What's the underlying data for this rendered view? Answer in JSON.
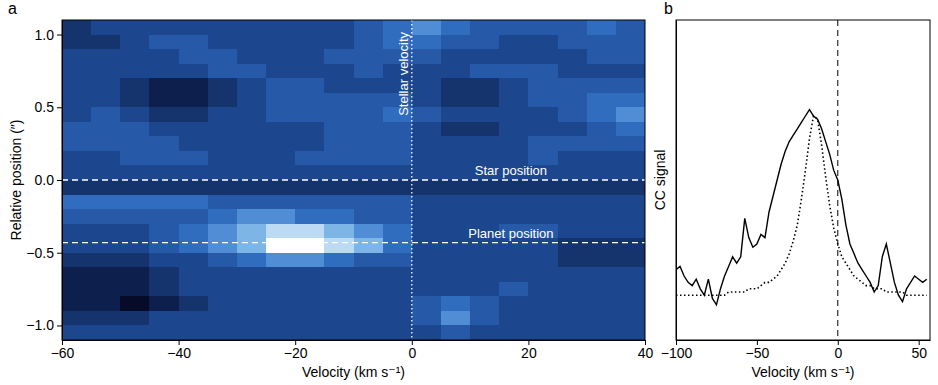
{
  "chart_data": [
    {
      "type": "heatmap",
      "panel_label": "a",
      "xlabel": "Velocity (km s⁻¹)",
      "ylabel": "Relative position (″)",
      "xlim": [
        -60,
        40
      ],
      "ylim": [
        -1.1,
        1.1
      ],
      "xticks": [
        {
          "value": -60,
          "label": "−60"
        },
        {
          "value": -40,
          "label": "−40"
        },
        {
          "value": -20,
          "label": "−20"
        },
        0,
        20,
        40
      ],
      "yticks": [
        {
          "value": -1,
          "label": "−1.0"
        },
        {
          "value": -0.5,
          "label": "−0.5"
        },
        {
          "value": 0,
          "label": "0.0"
        },
        0.5,
        {
          "value": 1,
          "label": "1.0"
        }
      ],
      "zlim": [
        0,
        9
      ],
      "x": [
        -57.5,
        -52.5,
        -47.5,
        -42.5,
        -37.5,
        -32.5,
        -27.5,
        -22.5,
        -17.5,
        -12.5,
        -7.5,
        -2.5,
        2.5,
        7.5,
        12.5,
        17.5,
        22.5,
        27.5,
        32.5,
        37.5
      ],
      "y": [
        1.05,
        0.95,
        0.85,
        0.75,
        0.65,
        0.55,
        0.45,
        0.35,
        0.25,
        0.15,
        0.05,
        -0.05,
        -0.15,
        -0.25,
        -0.35,
        -0.45,
        -0.55,
        -0.65,
        -0.75,
        -0.85,
        -0.95,
        -1.05
      ],
      "cells": [
        [
          2,
          3,
          3,
          3,
          3,
          3,
          3,
          3,
          3,
          3,
          4,
          5,
          6,
          5,
          4,
          4,
          4,
          4,
          5,
          4
        ],
        [
          2,
          2,
          3,
          4,
          4,
          3,
          3,
          3,
          3,
          3,
          4,
          5,
          5,
          4,
          4,
          3,
          3,
          4,
          4,
          4
        ],
        [
          3,
          3,
          3,
          3,
          4,
          4,
          3,
          3,
          3,
          4,
          4,
          4,
          4,
          3,
          3,
          3,
          3,
          3,
          4,
          4
        ],
        [
          3,
          3,
          3,
          3,
          3,
          4,
          4,
          3,
          3,
          3,
          4,
          3,
          3,
          3,
          4,
          4,
          4,
          3,
          3,
          3
        ],
        [
          3,
          3,
          2,
          1,
          1,
          2,
          3,
          4,
          4,
          3,
          3,
          3,
          3,
          2,
          2,
          3,
          4,
          4,
          4,
          4
        ],
        [
          3,
          3,
          2,
          1,
          1,
          2,
          3,
          4,
          4,
          4,
          4,
          4,
          3,
          2,
          2,
          3,
          4,
          4,
          5,
          5
        ],
        [
          3,
          4,
          3,
          2,
          2,
          3,
          3,
          4,
          4,
          4,
          4,
          5,
          4,
          3,
          3,
          3,
          3,
          4,
          5,
          6
        ],
        [
          4,
          4,
          4,
          3,
          3,
          3,
          3,
          3,
          3,
          4,
          4,
          4,
          3,
          2,
          2,
          3,
          3,
          3,
          4,
          5
        ],
        [
          4,
          4,
          4,
          4,
          3,
          3,
          3,
          3,
          3,
          4,
          4,
          4,
          3,
          3,
          3,
          3,
          4,
          4,
          4,
          4
        ],
        [
          3,
          3,
          4,
          4,
          4,
          3,
          3,
          3,
          4,
          4,
          4,
          4,
          3,
          3,
          3,
          3,
          4,
          3,
          3,
          3
        ],
        [
          3,
          3,
          3,
          3,
          3,
          3,
          3,
          3,
          3,
          3,
          3,
          3,
          3,
          3,
          3,
          3,
          3,
          3,
          3,
          3
        ],
        [
          2,
          2,
          2,
          2,
          2,
          2,
          2,
          2,
          2,
          2,
          2,
          2,
          2,
          2,
          2,
          2,
          2,
          2,
          2,
          2
        ],
        [
          5,
          5,
          5,
          5,
          5,
          4,
          4,
          4,
          4,
          4,
          4,
          4,
          3,
          3,
          3,
          3,
          3,
          3,
          3,
          3
        ],
        [
          4,
          4,
          4,
          4,
          4,
          5,
          6,
          6,
          5,
          5,
          4,
          4,
          3,
          3,
          3,
          3,
          3,
          3,
          3,
          3
        ],
        [
          3,
          3,
          3,
          4,
          5,
          6,
          7,
          8,
          8,
          7,
          6,
          5,
          3,
          3,
          3,
          4,
          4,
          3,
          3,
          3
        ],
        [
          3,
          3,
          3,
          4,
          5,
          6,
          7,
          9,
          9,
          8,
          7,
          5,
          3,
          3,
          3,
          3,
          3,
          2,
          2,
          2
        ],
        [
          2,
          2,
          2,
          3,
          3,
          4,
          5,
          6,
          6,
          5,
          4,
          4,
          3,
          3,
          3,
          3,
          3,
          2,
          2,
          2
        ],
        [
          1,
          1,
          1,
          2,
          3,
          3,
          3,
          3,
          3,
          3,
          3,
          3,
          3,
          3,
          3,
          3,
          3,
          3,
          3,
          3
        ],
        [
          1,
          1,
          1,
          2,
          3,
          3,
          3,
          3,
          3,
          3,
          3,
          3,
          3,
          3,
          3,
          4,
          3,
          3,
          3,
          3
        ],
        [
          1,
          1,
          0,
          1,
          2,
          3,
          3,
          3,
          3,
          3,
          3,
          3,
          4,
          5,
          4,
          3,
          3,
          3,
          3,
          3
        ],
        [
          2,
          2,
          2,
          3,
          3,
          3,
          3,
          3,
          3,
          3,
          3,
          3,
          4,
          6,
          4,
          3,
          3,
          3,
          3,
          3
        ],
        [
          3,
          3,
          3,
          3,
          3,
          3,
          3,
          3,
          3,
          3,
          3,
          3,
          3,
          4,
          3,
          3,
          3,
          3,
          3,
          3
        ]
      ],
      "annotations": [
        {
          "text": "Stellar velocity",
          "x": 0,
          "line_style": "dotted"
        },
        {
          "text": "Star position",
          "y": 0,
          "line_style": "dashed"
        },
        {
          "text": "Planet position",
          "y": -0.43,
          "line_style": "dashed"
        }
      ]
    },
    {
      "type": "line",
      "panel_label": "b",
      "xlabel": "Velocity (km s⁻¹)",
      "ylabel": "CC signal",
      "xlim": [
        -100,
        57
      ],
      "ylim": [
        0,
        1
      ],
      "xticks": [
        {
          "value": -100,
          "label": "−100"
        },
        {
          "value": -50,
          "label": "−50"
        },
        0,
        50
      ],
      "tick_labels": "x",
      "x": [
        -100,
        -97.5,
        -95,
        -92.5,
        -90,
        -87.5,
        -85,
        -82.5,
        -80,
        -77.5,
        -75,
        -72.5,
        -70,
        -67.5,
        -65,
        -62.5,
        -60,
        -57.5,
        -55,
        -52.5,
        -50,
        -47.5,
        -45,
        -42.5,
        -40,
        -37.5,
        -35,
        -32.5,
        -30,
        -27.5,
        -25,
        -22.5,
        -20,
        -17.5,
        -15,
        -12.5,
        -10,
        -7.5,
        -5,
        -2.5,
        0,
        2.5,
        5,
        7.5,
        10,
        12.5,
        15,
        17.5,
        20,
        22.5,
        25,
        27.5,
        30,
        32.5,
        35,
        37.5,
        40,
        42.5,
        45,
        47.5,
        50,
        52.5,
        55
      ],
      "series": [
        {
          "color": "#000000",
          "line_style": "solid",
          "values": [
            0.22,
            0.23,
            0.2,
            0.18,
            0.17,
            0.19,
            0.16,
            0.14,
            0.19,
            0.13,
            0.11,
            0.16,
            0.2,
            0.23,
            0.26,
            0.24,
            0.26,
            0.38,
            0.32,
            0.29,
            0.3,
            0.33,
            0.32,
            0.4,
            0.45,
            0.5,
            0.55,
            0.59,
            0.62,
            0.64,
            0.66,
            0.68,
            0.7,
            0.72,
            0.7,
            0.69,
            0.66,
            0.62,
            0.58,
            0.53,
            0.5,
            0.44,
            0.36,
            0.3,
            0.27,
            0.24,
            0.22,
            0.2,
            0.18,
            0.15,
            0.17,
            0.26,
            0.3,
            0.24,
            0.18,
            0.14,
            0.12,
            0.16,
            0.18,
            0.2,
            0.19,
            0.18,
            0.19
          ]
        },
        {
          "color": "#000000",
          "line_style": "dotted",
          "values": [
            0.14,
            0.14,
            0.14,
            0.14,
            0.14,
            0.14,
            0.14,
            0.14,
            0.14,
            0.14,
            0.14,
            0.14,
            0.14,
            0.15,
            0.15,
            0.15,
            0.15,
            0.15,
            0.16,
            0.16,
            0.16,
            0.17,
            0.18,
            0.18,
            0.19,
            0.2,
            0.22,
            0.24,
            0.27,
            0.31,
            0.36,
            0.44,
            0.53,
            0.63,
            0.7,
            0.69,
            0.61,
            0.51,
            0.42,
            0.35,
            0.3,
            0.26,
            0.24,
            0.22,
            0.2,
            0.19,
            0.18,
            0.17,
            0.17,
            0.16,
            0.16,
            0.16,
            0.15,
            0.15,
            0.15,
            0.15,
            0.15,
            0.14,
            0.14,
            0.14,
            0.14,
            0.14,
            0.14
          ]
        }
      ],
      "annotations": [
        {
          "x": 0,
          "line_style": "dashed"
        }
      ]
    }
  ]
}
